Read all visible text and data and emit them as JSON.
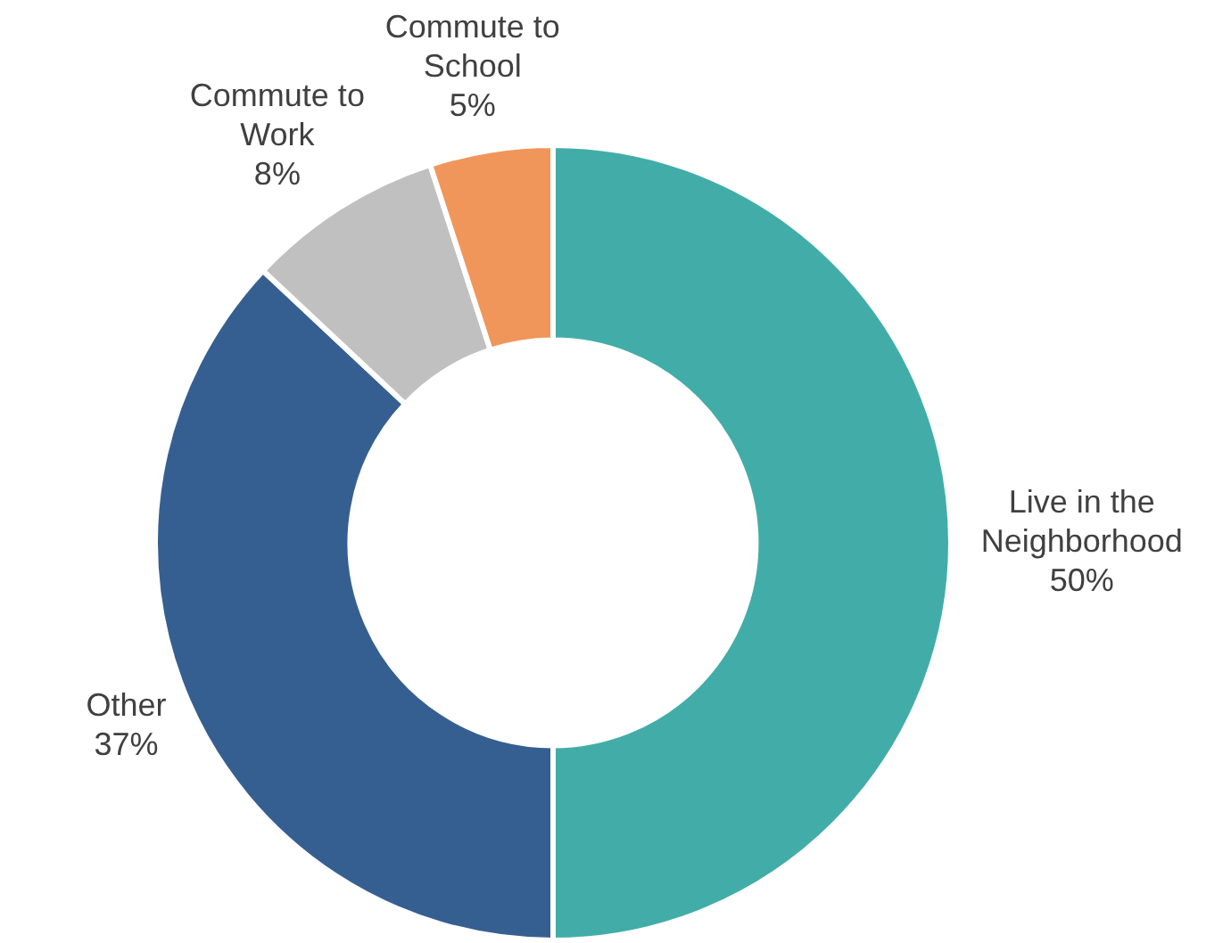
{
  "chart_data": {
    "type": "donut",
    "categories": [
      "Live in the Neighborhood",
      "Other",
      "Commute to Work",
      "Commute to School"
    ],
    "values": [
      50,
      37,
      8,
      5
    ],
    "colors": [
      "#42ada8",
      "#365f91",
      "#c0c0c0",
      "#f0965a"
    ],
    "value_labels": [
      "50%",
      "37%",
      "8%",
      "5%"
    ],
    "legend": false
  }
}
